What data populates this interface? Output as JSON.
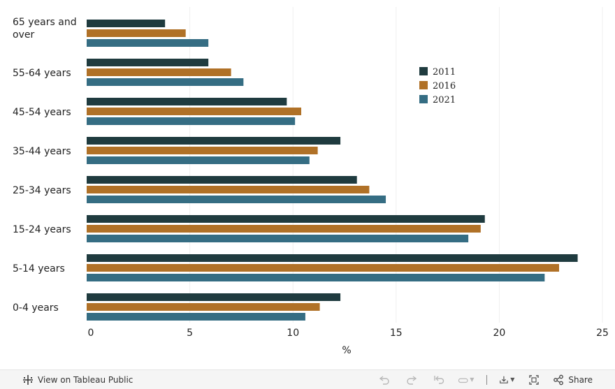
{
  "chart_data": {
    "type": "bar",
    "orientation": "horizontal",
    "categories": [
      "65 years and over",
      "55-64 years",
      "45-54 years",
      "35-44 years",
      "25-34 years",
      "15-24 years",
      "5-14 years",
      "0-4 years"
    ],
    "category_lines": [
      [
        "65 years and",
        "over"
      ],
      [
        "55-64 years"
      ],
      [
        "45-54 years"
      ],
      [
        "35-44 years"
      ],
      [
        "25-34 years"
      ],
      [
        "15-24 years"
      ],
      [
        "5-14 years"
      ],
      [
        "0-4 years"
      ]
    ],
    "series": [
      {
        "name": "2011",
        "color": "#1f3b3f",
        "values": [
          3.8,
          5.9,
          9.7,
          12.3,
          13.1,
          19.3,
          23.8,
          12.3
        ]
      },
      {
        "name": "2016",
        "color": "#b07127",
        "values": [
          4.8,
          7.0,
          10.4,
          11.2,
          13.7,
          19.1,
          22.9,
          11.3
        ]
      },
      {
        "name": "2021",
        "color": "#356d83",
        "values": [
          5.9,
          7.6,
          10.1,
          10.8,
          14.5,
          18.5,
          22.2,
          10.6
        ]
      }
    ],
    "xlim": [
      0,
      25
    ],
    "xticks": [
      0,
      5,
      10,
      15,
      20,
      25
    ],
    "xlabel": "%",
    "ylabel": "",
    "title": "",
    "grid": true,
    "legend_position": "top-right"
  },
  "toolbar": {
    "view_label": "View on Tableau Public",
    "share_label": "Share"
  }
}
